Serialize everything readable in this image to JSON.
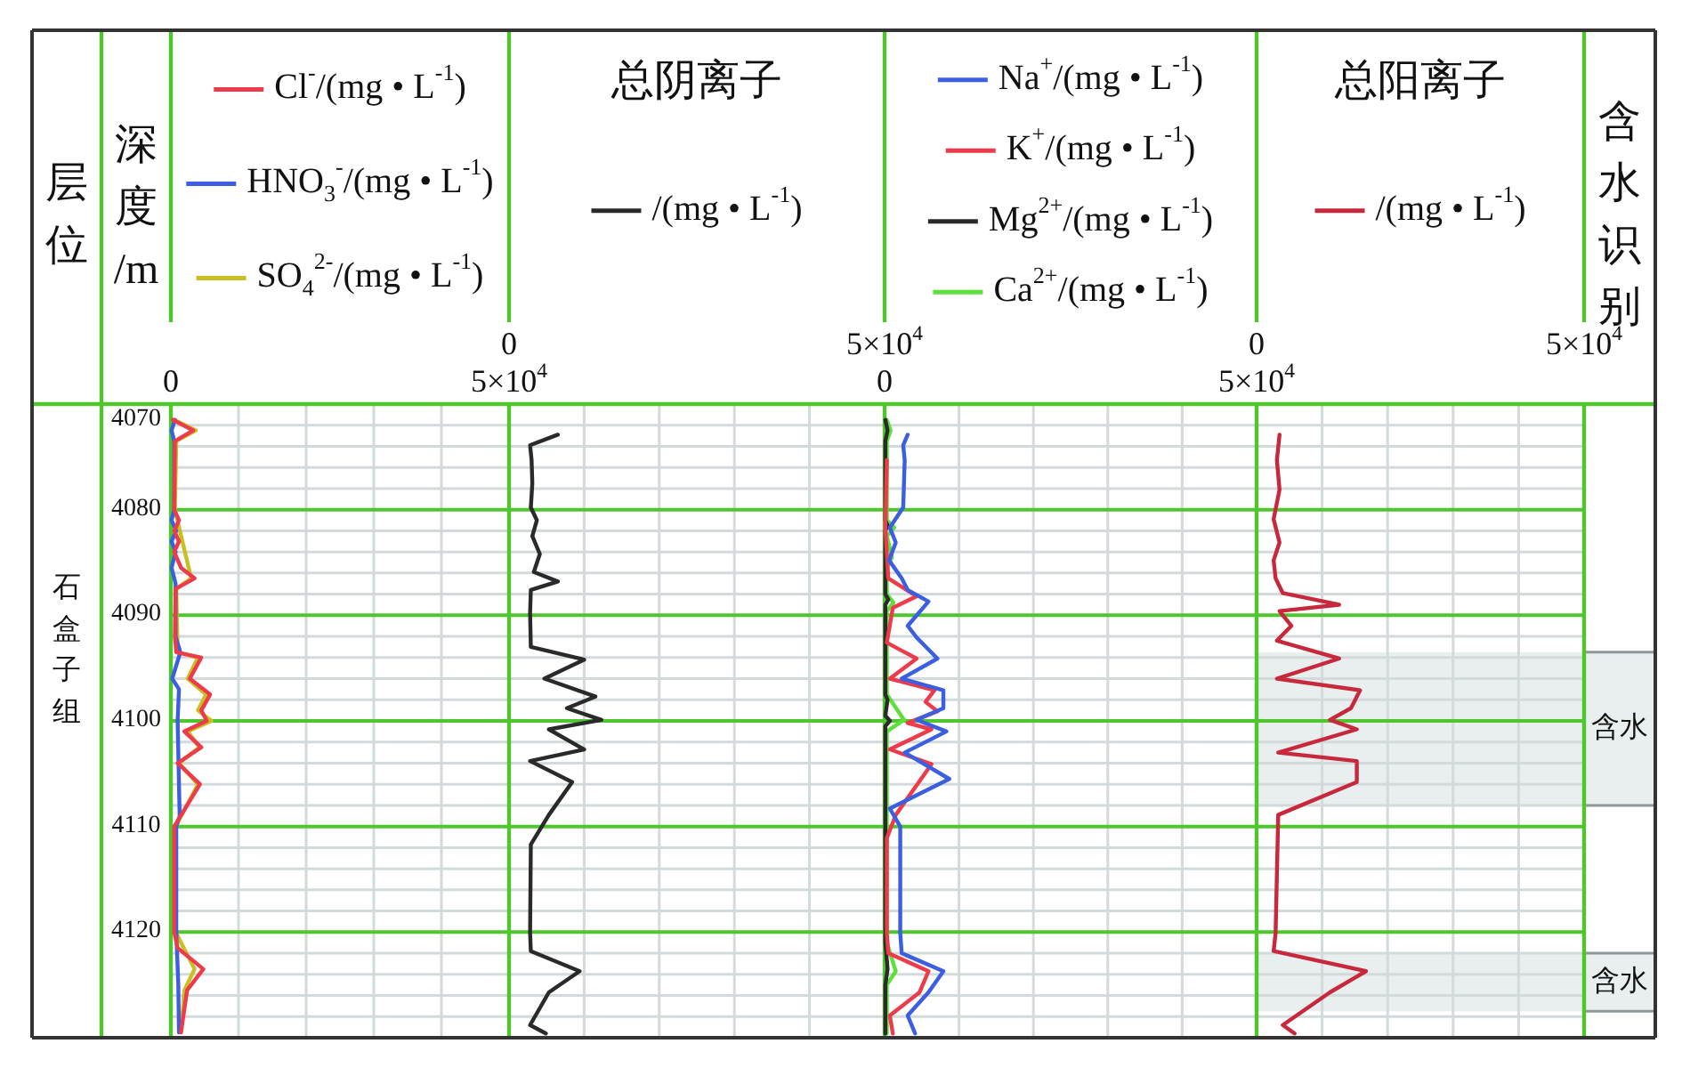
{
  "chart_data": [
    {
      "type": "line",
      "orientation": "horizontal",
      "ylabel": "深度/m",
      "annotations": [
        "层位",
        "石盒子组"
      ],
      "legend": "top",
      "grid": true,
      "xlim": [
        0,
        50000
      ],
      "xticks": [
        {
          "value": 0,
          "label": "0"
        },
        {
          "value": 10000,
          "label": null
        },
        {
          "value": 20000,
          "label": null
        },
        {
          "value": 30000,
          "label": null
        },
        {
          "value": 40000,
          "label": null
        },
        {
          "value": 50000,
          "label": "5×10$^{4}$"
        }
      ],
      "ylim": [
        4130,
        4070
      ],
      "yticks": [
        4070,
        {
          "value": 4072,
          "label": null
        },
        {
          "value": 4074,
          "label": null
        },
        {
          "value": 4076,
          "label": null
        },
        {
          "value": 4078,
          "label": null
        },
        4080,
        {
          "value": 4082,
          "label": null
        },
        {
          "value": 4084,
          "label": null
        },
        {
          "value": 4086,
          "label": null
        },
        {
          "value": 4088,
          "label": null
        },
        4090,
        {
          "value": 4092,
          "label": null
        },
        {
          "value": 4094,
          "label": null
        },
        {
          "value": 4096,
          "label": null
        },
        {
          "value": 4098,
          "label": null
        },
        4100,
        {
          "value": 4102,
          "label": null
        },
        {
          "value": 4104,
          "label": null
        },
        {
          "value": 4106,
          "label": null
        },
        {
          "value": 4108,
          "label": null
        },
        4110,
        {
          "value": 4112,
          "label": null
        },
        {
          "value": 4114,
          "label": null
        },
        {
          "value": 4116,
          "label": null
        },
        {
          "value": 4118,
          "label": null
        },
        4120,
        {
          "value": 4122,
          "label": null
        },
        {
          "value": 4124,
          "label": null
        },
        {
          "value": 4126,
          "label": null
        },
        {
          "value": 4128,
          "label": null
        },
        {
          "value": 4130,
          "label": null
        }
      ],
      "series": [
        {
          "name": "Cl$^{-}$/(mg • L$^{-1}$)",
          "color": "#ee3b4b",
          "x": [
            4071.5,
            4072.5,
            4073.5,
            4080,
            4081,
            4082,
            4083,
            4084,
            4085.5,
            4086.5,
            4087.5,
            4092,
            4093.5,
            4094,
            4096,
            4097.5,
            4099,
            4100,
            4101,
            4102.5,
            4104,
            4106,
            4110,
            4120,
            4121.5,
            4123.5,
            4125.5,
            4129.5
          ],
          "values": [
            300,
            3300,
            600,
            500,
            1200,
            500,
            1200,
            500,
            1500,
            3500,
            700,
            600,
            800,
            4500,
            2800,
            5800,
            4500,
            5300,
            2000,
            4500,
            1000,
            4300,
            500,
            500,
            1000,
            4800,
            2400,
            1500
          ]
        },
        {
          "name": "HNO$_{3}$$^{-}$/(mg • L$^{-1}$)",
          "color": "#3b5fe0",
          "x": [
            4071.5,
            4072.5,
            4073.5,
            4080,
            4081,
            4082,
            4083,
            4084,
            4085.5,
            4087,
            4092,
            4093.5,
            4096,
            4097,
            4100,
            4106,
            4109,
            4110,
            4120,
            4125,
            4129.5
          ],
          "values": [
            600,
            100,
            500,
            500,
            100,
            800,
            100,
            700,
            100,
            700,
            700,
            1400,
            200,
            1200,
            1000,
            1200,
            1300,
            800,
            800,
            1100,
            1200
          ]
        },
        {
          "name": "SO$_{4}$$^{2-}$/(mg • L$^{-1}$)",
          "color": "#c8c020",
          "x": [
            4071.5,
            4072.5,
            4073.5,
            4080,
            4086.5,
            4087.5,
            4093.5,
            4094,
            4096,
            4097.5,
            4099,
            4100,
            4101,
            4102.5,
            4104,
            4106,
            4110,
            4120,
            4123.5,
            4125.5,
            4129.5
          ],
          "values": [
            500,
            3700,
            800,
            600,
            3000,
            800,
            1000,
            4000,
            2500,
            5200,
            4000,
            6000,
            2500,
            4200,
            1200,
            4000,
            700,
            700,
            3500,
            2000,
            1500
          ]
        }
      ]
    },
    {
      "type": "line",
      "orientation": "horizontal",
      "title": "总阴离子",
      "legend": "top",
      "grid": true,
      "tick_labels": "x",
      "xlim": [
        0,
        50000
      ],
      "xticks": [
        {
          "value": 0,
          "label": "0"
        },
        {
          "value": 10000,
          "label": null
        },
        {
          "value": 20000,
          "label": null
        },
        {
          "value": 30000,
          "label": null
        },
        {
          "value": 40000,
          "label": null
        },
        {
          "value": 50000,
          "label": "5×10$^{4}$"
        }
      ],
      "ylim": [
        4130,
        4070
      ],
      "yticks": [
        4070,
        {
          "value": 4072,
          "label": null
        },
        {
          "value": 4074,
          "label": null
        },
        {
          "value": 4076,
          "label": null
        },
        {
          "value": 4078,
          "label": null
        },
        4080,
        {
          "value": 4082,
          "label": null
        },
        {
          "value": 4084,
          "label": null
        },
        {
          "value": 4086,
          "label": null
        },
        {
          "value": 4088,
          "label": null
        },
        4090,
        {
          "value": 4092,
          "label": null
        },
        {
          "value": 4094,
          "label": null
        },
        {
          "value": 4096,
          "label": null
        },
        {
          "value": 4098,
          "label": null
        },
        4100,
        {
          "value": 4102,
          "label": null
        },
        {
          "value": 4104,
          "label": null
        },
        {
          "value": 4106,
          "label": null
        },
        {
          "value": 4108,
          "label": null
        },
        4110,
        {
          "value": 4112,
          "label": null
        },
        {
          "value": 4114,
          "label": null
        },
        {
          "value": 4116,
          "label": null
        },
        {
          "value": 4118,
          "label": null
        },
        4120,
        {
          "value": 4122,
          "label": null
        },
        {
          "value": 4124,
          "label": null
        },
        {
          "value": 4126,
          "label": null
        },
        {
          "value": 4128,
          "label": null
        },
        {
          "value": 4130,
          "label": null
        }
      ],
      "series": [
        {
          "name": "/(mg • L$^{-1}$)",
          "color": "#2a2a2a",
          "x": [
            4072.9,
            4073.9,
            4075.3,
            4077.5,
            4079.8,
            4081,
            4082.5,
            4084.2,
            4085.9,
            4086.8,
            4087.6,
            4089.8,
            4093,
            4094.2,
            4096,
            4097.7,
            4098.8,
            4099.9,
            4100.8,
            4102.7,
            4103.8,
            4105.8,
            4108.9,
            4111.7,
            4120.1,
            4121.8,
            4123.7,
            4125.7,
            4128.8,
            4129.6
          ],
          "values": [
            6500,
            2800,
            3000,
            3100,
            2900,
            3700,
            3100,
            4100,
            3300,
            6500,
            2900,
            2800,
            2900,
            10000,
            4700,
            11500,
            7700,
            12300,
            5300,
            10000,
            2800,
            8400,
            5300,
            2900,
            2800,
            2900,
            9400,
            5300,
            2800,
            4900
          ]
        }
      ]
    },
    {
      "type": "line",
      "orientation": "horizontal",
      "legend": "top",
      "grid": true,
      "tick_labels": "x",
      "xlim": [
        0,
        50000
      ],
      "xticks": [
        {
          "value": 0,
          "label": "0"
        },
        {
          "value": 10000,
          "label": null
        },
        {
          "value": 20000,
          "label": null
        },
        {
          "value": 30000,
          "label": null
        },
        {
          "value": 40000,
          "label": null
        },
        {
          "value": 50000,
          "label": "5×10$^{4}$"
        }
      ],
      "ylim": [
        4130,
        4070
      ],
      "yticks": [
        4070,
        {
          "value": 4072,
          "label": null
        },
        {
          "value": 4074,
          "label": null
        },
        {
          "value": 4076,
          "label": null
        },
        {
          "value": 4078,
          "label": null
        },
        4080,
        {
          "value": 4082,
          "label": null
        },
        {
          "value": 4084,
          "label": null
        },
        {
          "value": 4086,
          "label": null
        },
        {
          "value": 4088,
          "label": null
        },
        4090,
        {
          "value": 4092,
          "label": null
        },
        {
          "value": 4094,
          "label": null
        },
        {
          "value": 4096,
          "label": null
        },
        {
          "value": 4098,
          "label": null
        },
        4100,
        {
          "value": 4102,
          "label": null
        },
        {
          "value": 4104,
          "label": null
        },
        {
          "value": 4106,
          "label": null
        },
        {
          "value": 4108,
          "label": null
        },
        4110,
        {
          "value": 4112,
          "label": null
        },
        {
          "value": 4114,
          "label": null
        },
        {
          "value": 4116,
          "label": null
        },
        {
          "value": 4118,
          "label": null
        },
        4120,
        {
          "value": 4122,
          "label": null
        },
        {
          "value": 4124,
          "label": null
        },
        {
          "value": 4126,
          "label": null
        },
        {
          "value": 4128,
          "label": null
        },
        {
          "value": 4130,
          "label": null
        }
      ],
      "series": [
        {
          "name": "Na$^{+}$/(mg • L$^{-1}$)",
          "color": "#3b5fe0",
          "x": [
            4072.9,
            4073.9,
            4075.3,
            4079.8,
            4081.7,
            4083.1,
            4084.8,
            4086.5,
            4087.6,
            4088.7,
            4091,
            4092.1,
            4094.1,
            4096,
            4097.1,
            4098.8,
            4099.9,
            4101,
            4103,
            4105.5,
            4108.3,
            4110,
            4120.1,
            4122,
            4123.7,
            4125.7,
            4127.9,
            4129.6
          ],
          "values": [
            3100,
            2500,
            2700,
            2500,
            700,
            1500,
            600,
            2300,
            3100,
            5900,
            3100,
            4300,
            7100,
            2300,
            7900,
            7900,
            4300,
            8300,
            2700,
            8700,
            700,
            2100,
            2100,
            2300,
            7900,
            5900,
            3100,
            4100
          ]
        },
        {
          "name": "K$^{+}$/(mg • L$^{-1}$)",
          "color": "#ee3b4b",
          "x": [
            4075.3,
            4081.7,
            4086.5,
            4088.2,
            4089.3,
            4092.6,
            4094.1,
            4096,
            4097.1,
            4098.2,
            4099.1,
            4100.2,
            4100.8,
            4102.7,
            4104.1,
            4108.9,
            4111.1,
            4120.1,
            4122,
            4123.7,
            4125.7,
            4127.9,
            4129.6
          ],
          "values": [
            300,
            100,
            500,
            4300,
            1100,
            300,
            4300,
            700,
            6700,
            5500,
            7100,
            3100,
            6300,
            700,
            6300,
            1500,
            300,
            300,
            500,
            5900,
            4700,
            700,
            1100
          ]
        },
        {
          "name": "Mg$^{2+}$/(mg • L$^{-1}$)",
          "color": "#2a2a2a",
          "x": [
            4071.5,
            4072.5,
            4073.5,
            4081,
            4081.5,
            4082,
            4088,
            4088.5,
            4089,
            4097.5,
            4098,
            4099.5,
            4100,
            4100.5,
            4121,
            4123.5,
            4125,
            4129.6
          ],
          "values": [
            100,
            400,
            100,
            100,
            400,
            100,
            100,
            500,
            100,
            100,
            400,
            100,
            700,
            100,
            100,
            400,
            100,
            100
          ]
        },
        {
          "name": "Ca$^{2+}$/(mg • L$^{-1}$)",
          "color": "#5ee03a",
          "x": [
            4071.5,
            4072.5,
            4073.5,
            4081,
            4081.7,
            4082.5,
            4084.5,
            4085.5,
            4088,
            4088.8,
            4089.6,
            4097.5,
            4099.9,
            4101,
            4121,
            4123.7,
            4125,
            4129.6
          ],
          "values": [
            300,
            800,
            300,
            300,
            1300,
            300,
            1000,
            300,
            300,
            1200,
            300,
            300,
            2600,
            300,
            300,
            1500,
            300,
            300
          ]
        }
      ]
    },
    {
      "type": "line",
      "orientation": "horizontal",
      "title": "总阳离子",
      "annotations": [
        "含水识别"
      ],
      "legend": "top",
      "grid": true,
      "tick_labels": "x",
      "xlim": [
        0,
        50000
      ],
      "xticks": [
        {
          "value": 0,
          "label": "0"
        },
        {
          "value": 10000,
          "label": null
        },
        {
          "value": 20000,
          "label": null
        },
        {
          "value": 30000,
          "label": null
        },
        {
          "value": 40000,
          "label": null
        },
        {
          "value": 50000,
          "label": "5×10$^{4}$"
        }
      ],
      "ylim": [
        4130,
        4070
      ],
      "yticks": [
        4070,
        {
          "value": 4072,
          "label": null
        },
        {
          "value": 4074,
          "label": null
        },
        {
          "value": 4076,
          "label": null
        },
        {
          "value": 4078,
          "label": null
        },
        4080,
        {
          "value": 4082,
          "label": null
        },
        {
          "value": 4084,
          "label": null
        },
        {
          "value": 4086,
          "label": null
        },
        {
          "value": 4088,
          "label": null
        },
        4090,
        {
          "value": 4092,
          "label": null
        },
        {
          "value": 4094,
          "label": null
        },
        {
          "value": 4096,
          "label": null
        },
        {
          "value": 4098,
          "label": null
        },
        4100,
        {
          "value": 4102,
          "label": null
        },
        {
          "value": 4104,
          "label": null
        },
        {
          "value": 4106,
          "label": null
        },
        {
          "value": 4108,
          "label": null
        },
        4110,
        {
          "value": 4112,
          "label": null
        },
        {
          "value": 4114,
          "label": null
        },
        {
          "value": 4116,
          "label": null
        },
        {
          "value": 4118,
          "label": null
        },
        4120,
        {
          "value": 4122,
          "label": null
        },
        {
          "value": 4124,
          "label": null
        },
        {
          "value": 4126,
          "label": null
        },
        {
          "value": 4128,
          "label": null
        },
        {
          "value": 4130,
          "label": null
        }
      ],
      "bands": [
        {
          "axis": "y",
          "from": 4093.5,
          "to": 4108,
          "label": "含水"
        },
        {
          "axis": "y",
          "from": 4122,
          "to": 4127.5,
          "label": "含水"
        }
      ],
      "series": [
        {
          "name": "/(mg • L$^{-1}$)",
          "color": "#c8283c",
          "x": [
            4072.9,
            4075.3,
            4078.1,
            4080.9,
            4083.1,
            4084.8,
            4086.5,
            4087.9,
            4089,
            4089.6,
            4091,
            4092.4,
            4094.1,
            4096,
            4097.1,
            4098.8,
            4099.9,
            4100.8,
            4103,
            4103.8,
            4105.8,
            4108.9,
            4120.1,
            4121.8,
            4123.7,
            4125.7,
            4128.8,
            4129.6
          ],
          "values": [
            3500,
            3100,
            3500,
            2600,
            3500,
            2600,
            2900,
            4000,
            12600,
            3500,
            5300,
            3100,
            12600,
            3100,
            15800,
            14400,
            11200,
            15300,
            3300,
            15300,
            15300,
            3300,
            2900,
            2600,
            16700,
            11200,
            4000,
            5800
          ]
        }
      ]
    }
  ]
}
